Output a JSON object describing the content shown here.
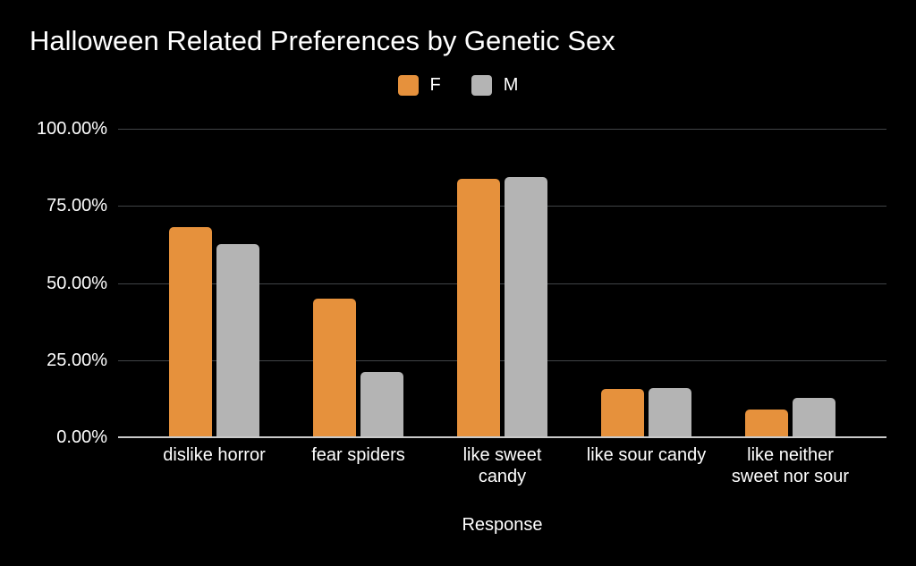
{
  "chart_data": {
    "type": "bar",
    "title": "Halloween Related Preferences by Genetic Sex",
    "xlabel": "Response",
    "ylabel": "",
    "categories": [
      "dislike horror",
      "fear spiders",
      "like sweet candy",
      "like sour candy",
      "like neither sweet nor sour"
    ],
    "series": [
      {
        "name": "F",
        "color": "#E6913C",
        "values": [
          68.1,
          44.9,
          83.8,
          15.7,
          9.0
        ]
      },
      {
        "name": "M",
        "color": "#B4B4B4",
        "values": [
          62.6,
          21.2,
          84.3,
          15.9,
          12.8
        ]
      }
    ],
    "ylim": [
      0,
      100
    ],
    "ytick_labels_top_to_bottom": [
      "100.00%",
      "75.00%",
      "50.00%",
      "25.00%",
      "0.00%"
    ],
    "grid": "horizontal",
    "legend_position": "top-center",
    "colors": {
      "background": "#000000",
      "text": "#FFFFFF",
      "gridline": "#414447",
      "baseline": "#C9C9C9"
    }
  }
}
